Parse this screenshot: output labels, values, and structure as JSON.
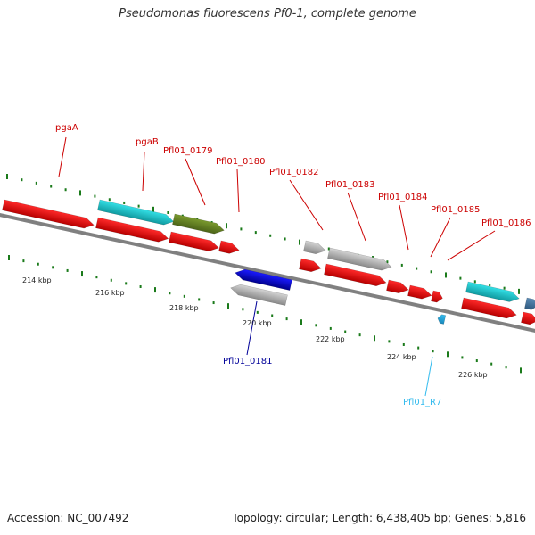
{
  "title": "Pseudomonas fluorescens Pf0-1, complete genome",
  "footer": {
    "accession": "Accession: NC_007492",
    "summary": "Topology: circular; Length: 6,438,405 bp; Genes: 5,816"
  },
  "colors": {
    "label_forward": "#cc0000",
    "label_reverse": "#000099",
    "label_rna": "#33bbee",
    "tick": "#1a7a1a",
    "backbone": "#808080"
  },
  "kbp_ticks": [
    "214 kbp",
    "216 kbp",
    "218 kbp",
    "220 kbp",
    "222 kbp",
    "224 kbp",
    "226 kbp"
  ],
  "features": [
    {
      "id": "f1",
      "label": "pgaA",
      "strand": "forward",
      "color": "red"
    },
    {
      "id": "f2",
      "label": "",
      "strand": "forward",
      "color": "red"
    },
    {
      "id": "f3",
      "label": "pgaB",
      "strand": "forward",
      "color": "cyan"
    },
    {
      "id": "f4",
      "label": "",
      "strand": "forward",
      "color": "red"
    },
    {
      "id": "f5",
      "label": "Pfl01_0179",
      "strand": "forward",
      "color": "olive"
    },
    {
      "id": "f6",
      "label": "",
      "strand": "forward",
      "color": "red"
    },
    {
      "id": "f7",
      "label": "Pfl01_0180",
      "strand": "forward",
      "color": "red"
    },
    {
      "id": "f8",
      "label": "Pfl01_0181",
      "strand": "reverse",
      "color": "blue"
    },
    {
      "id": "f9",
      "label": "",
      "strand": "reverse",
      "color": "gray"
    },
    {
      "id": "f10",
      "label": "Pfl01_0182",
      "strand": "forward",
      "color": "gray"
    },
    {
      "id": "f11",
      "label": "",
      "strand": "forward",
      "color": "red"
    },
    {
      "id": "f12",
      "label": "Pfl01_0183",
      "strand": "forward",
      "color": "gray"
    },
    {
      "id": "f13",
      "label": "",
      "strand": "forward",
      "color": "red"
    },
    {
      "id": "f14",
      "label": "Pfl01_0184",
      "strand": "forward",
      "color": "red"
    },
    {
      "id": "f15",
      "label": "Pfl01_0185",
      "strand": "forward",
      "color": "red"
    },
    {
      "id": "f16",
      "label": "",
      "strand": "forward",
      "color": "red"
    },
    {
      "id": "f17",
      "label": "Pfl01_R7",
      "strand": "reverse",
      "color": "rna"
    },
    {
      "id": "f18",
      "label": "Pfl01_0186",
      "strand": "forward",
      "color": "cyan"
    },
    {
      "id": "f19",
      "label": "",
      "strand": "forward",
      "color": "red"
    },
    {
      "id": "f20",
      "label": "",
      "strand": "forward",
      "color": "steelblue"
    },
    {
      "id": "f21",
      "label": "",
      "strand": "forward",
      "color": "red"
    }
  ]
}
